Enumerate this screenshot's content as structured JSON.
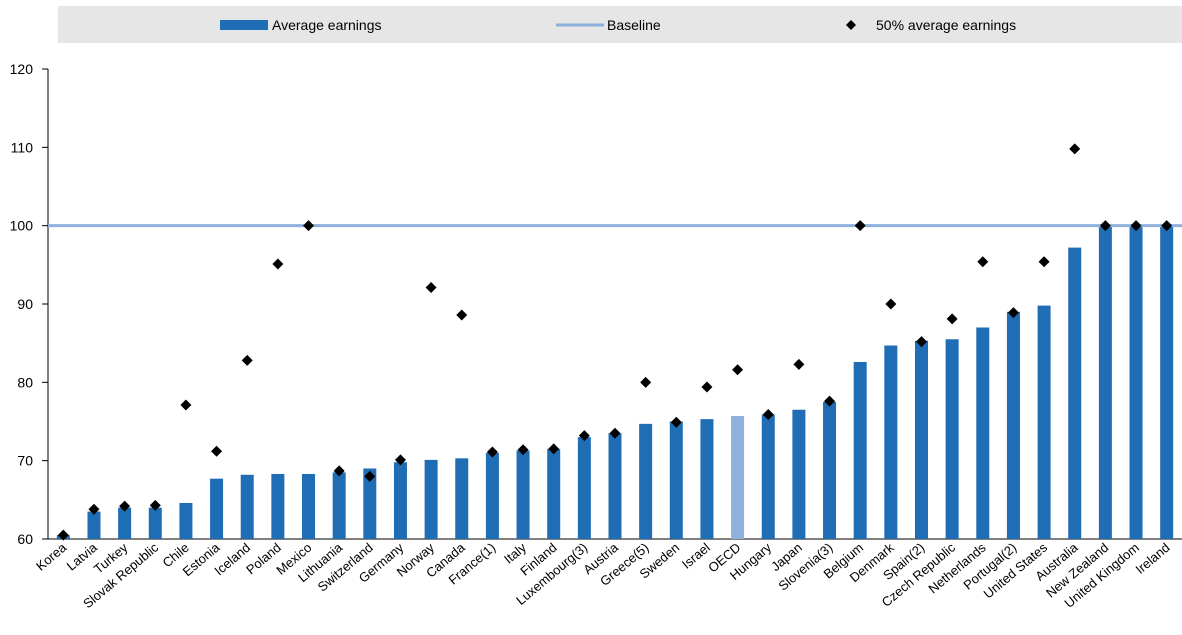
{
  "chart_data": {
    "type": "bar",
    "categories": [
      "Korea",
      "Latvia",
      "Turkey",
      "Slovak Republic",
      "Chile",
      "Estonia",
      "Iceland",
      "Poland",
      "Mexico",
      "Lithuania",
      "Switzerland",
      "Germany",
      "Norway",
      "Canada",
      "France(1)",
      "Italy",
      "Finland",
      "Luxembourg(3)",
      "Austria",
      "Greece(5)",
      "Sweden",
      "Israel",
      "OECD",
      "Hungary",
      "Japan",
      "Slovenia(3)",
      "Belgium",
      "Denmark",
      "Spain(2)",
      "Czech Republic",
      "Netherlands",
      "Portugal(2)",
      "United States",
      "Australia",
      "New Zealand",
      "United Kingdom",
      "Ireland"
    ],
    "series": [
      {
        "name": "Average earnings",
        "type": "bar",
        "color": "#1f6db5",
        "highlight": {
          "category": "OECD",
          "color": "#8fb0dd"
        },
        "values": [
          60.5,
          63.5,
          64.0,
          64.0,
          64.6,
          67.7,
          68.2,
          68.3,
          68.3,
          68.5,
          69.0,
          69.8,
          70.1,
          70.3,
          71.0,
          71.3,
          71.5,
          73.0,
          73.5,
          74.7,
          75.0,
          75.3,
          75.7,
          75.9,
          76.5,
          77.5,
          82.6,
          84.7,
          85.3,
          85.5,
          87.0,
          89.0,
          89.8,
          97.2,
          100.0,
          100.0,
          100.0
        ]
      },
      {
        "name": "Baseline",
        "type": "line",
        "color": "#8fb0dd",
        "value": 100
      },
      {
        "name": "50% average earnings",
        "type": "scatter",
        "color": "#000000",
        "values": [
          60.5,
          63.8,
          64.2,
          64.3,
          77.1,
          71.2,
          82.8,
          95.1,
          100.0,
          68.7,
          68.0,
          70.1,
          92.1,
          88.6,
          71.1,
          71.4,
          71.5,
          73.2,
          73.5,
          80.0,
          74.9,
          79.4,
          81.6,
          75.9,
          82.3,
          77.6,
          100.0,
          90.0,
          85.2,
          88.1,
          95.4,
          88.9,
          95.4,
          109.8,
          100.0,
          100.0,
          100.0
        ]
      }
    ],
    "ylim": [
      60,
      120
    ],
    "yticks": [
      60,
      70,
      80,
      90,
      100,
      110,
      120
    ],
    "grid": false,
    "legend_position": "top",
    "title": "",
    "xlabel": "",
    "ylabel": ""
  }
}
